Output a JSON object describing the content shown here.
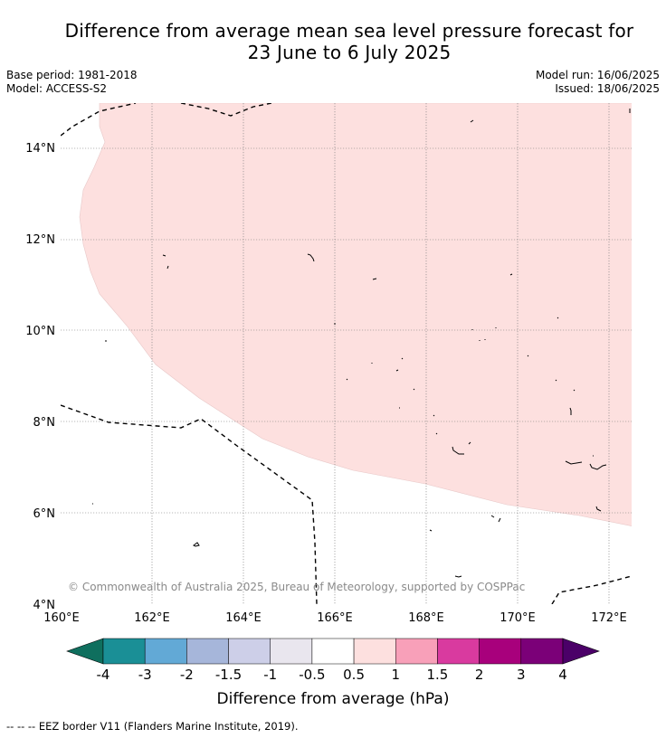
{
  "title": {
    "line1": "Difference from average mean sea level pressure forecast for",
    "line2": "23 June to 6 July 2025"
  },
  "meta": {
    "base_period": "Base period: 1981-2018",
    "model": "Model: ACCESS-S2",
    "model_run": "Model run: 16/06/2025",
    "issued": "Issued: 18/06/2025"
  },
  "map": {
    "lat_ticks": [
      "14°N",
      "12°N",
      "10°N",
      "8°N",
      "6°N",
      "4°N"
    ],
    "lon_ticks": [
      "160°E",
      "162°E",
      "164°E",
      "166°E",
      "168°E",
      "170°E",
      "172°E"
    ],
    "anomaly_region_color": "#fde0df",
    "anomaly_region_value": "0.5 to 1",
    "copyright": "© Commonwealth of Australia 2025, Bureau of Meteorology, supported by COSPPac"
  },
  "colorbar": {
    "labels": [
      "-4",
      "-3",
      "-2",
      "-1.5",
      "-1",
      "-0.5",
      "0.5",
      "1",
      "1.5",
      "2",
      "3",
      "4"
    ],
    "colors": [
      "#1a8f96",
      "#62a9d6",
      "#a6b6da",
      "#cdcfe8",
      "#e9e6ee",
      "#ffffff",
      "#fde0df",
      "#f8a0b9",
      "#d93a9f",
      "#a8007c",
      "#7b0078"
    ],
    "low_extend_color": "#0f6f5e",
    "high_extend_color": "#4b0068",
    "label": "Difference from average (hPa)"
  },
  "footer": {
    "legend_symbol": "-- -- --",
    "legend_text": "EEZ border V11 (Flanders Marine Institute, 2019)."
  }
}
